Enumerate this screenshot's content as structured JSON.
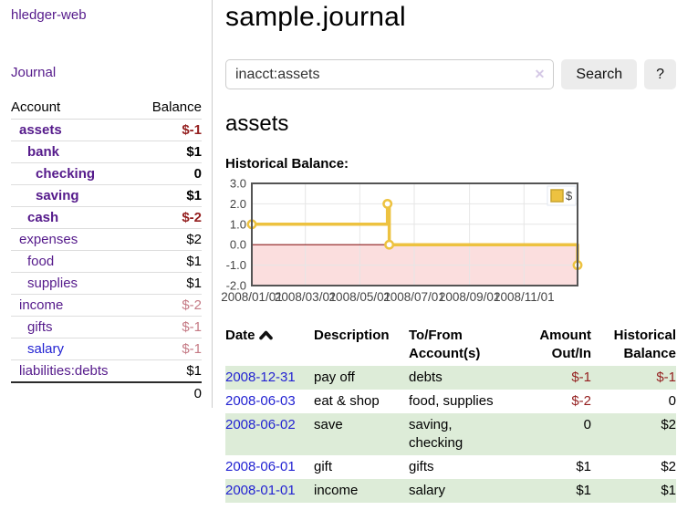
{
  "colors": {
    "link_purple": "#551a8b",
    "link_blue": "#2323d2",
    "negative_strong": "#941f1f",
    "negative_soft": "#c57a85",
    "row_highlight_green": "#ddecd8",
    "chart_line_gold": "#EDC240",
    "negative_region_pink": "#fbdede",
    "zero_line_red": "#8b1a1a"
  },
  "sidebar": {
    "app_title": "hledger-web",
    "nav_journal": "Journal",
    "accounts": {
      "col_account": "Account",
      "col_balance": "Balance",
      "rows": [
        {
          "name": "assets",
          "depth": 1,
          "bold": true,
          "balance": "$-1",
          "balance_style": "neg-strong"
        },
        {
          "name": "bank",
          "depth": 2,
          "bold": true,
          "balance": "$1",
          "balance_style": ""
        },
        {
          "name": "checking",
          "depth": 3,
          "bold": true,
          "balance": "0",
          "balance_style": ""
        },
        {
          "name": "saving",
          "depth": 3,
          "bold": true,
          "balance": "$1",
          "balance_style": ""
        },
        {
          "name": "cash",
          "depth": 2,
          "bold": true,
          "balance": "$-2",
          "balance_style": "neg-strong"
        },
        {
          "name": "expenses",
          "depth": 1,
          "bold": false,
          "balance": "$2",
          "balance_style": ""
        },
        {
          "name": "food",
          "depth": 2,
          "bold": false,
          "balance": "$1",
          "balance_style": ""
        },
        {
          "name": "supplies",
          "depth": 2,
          "bold": false,
          "balance": "$1",
          "balance_style": ""
        },
        {
          "name": "income",
          "depth": 1,
          "bold": false,
          "balance": "$-2",
          "balance_style": "neg-soft"
        },
        {
          "name": "gifts",
          "depth": 2,
          "bold": false,
          "balance": "$-1",
          "balance_style": "neg-soft"
        },
        {
          "name": "salary",
          "depth": 2,
          "bold": false,
          "balance": "$-1",
          "balance_style": "neg-soft",
          "link_style": "unvisited"
        },
        {
          "name": "liabilities:debts",
          "depth": 1,
          "bold": false,
          "balance": "$1",
          "balance_style": ""
        }
      ],
      "total": "0"
    }
  },
  "header": {
    "title": "sample.journal",
    "search": {
      "value": "inacct:assets",
      "clear_icon": "✕",
      "search_label": "Search",
      "help_label": "?"
    }
  },
  "account_page": {
    "heading": "assets",
    "chart_title": "Historical Balance:"
  },
  "chart_data": {
    "type": "line",
    "style": "step",
    "title": "Historical Balance:",
    "legend": [
      {
        "label": "$",
        "color": "#EDC240"
      }
    ],
    "legend_position": "top-right",
    "x_range": [
      "2008-01-01",
      "2008-12-31"
    ],
    "ylim": [
      -2,
      3
    ],
    "yticks": [
      3,
      2,
      1,
      0,
      -1,
      -2
    ],
    "xticks": [
      "2008/01/01",
      "2008/03/01",
      "2008/05/01",
      "2008/07/01",
      "2008/09/01",
      "2008/11/01"
    ],
    "grid": true,
    "series": [
      {
        "name": "$",
        "color": "#EDC240",
        "points": [
          [
            "2008-01-01",
            1
          ],
          [
            "2008-06-01",
            2
          ],
          [
            "2008-06-03",
            0
          ],
          [
            "2008-12-31",
            -1
          ]
        ]
      }
    ],
    "negative_region_fill": "#fbdede",
    "zero_line_color": "#8b1a1a"
  },
  "register": {
    "headers": [
      {
        "lines": [
          "Date"
        ],
        "align": "left",
        "sort": "asc"
      },
      {
        "lines": [
          "Description"
        ],
        "align": "left"
      },
      {
        "lines": [
          "To/From",
          "Account(s)"
        ],
        "align": "left"
      },
      {
        "lines": [
          "Amount",
          "Out/In"
        ],
        "align": "right"
      },
      {
        "lines": [
          "Historical",
          "Balance"
        ],
        "align": "right"
      }
    ],
    "rows": [
      {
        "date": "2008-12-31",
        "description": "pay off",
        "accounts": "debts",
        "amount": "$-1",
        "amount_neg": true,
        "balance": "$-1",
        "balance_neg": true
      },
      {
        "date": "2008-06-03",
        "description": "eat & shop",
        "accounts": "food, supplies",
        "amount": "$-2",
        "amount_neg": true,
        "balance": "0",
        "balance_neg": false
      },
      {
        "date": "2008-06-02",
        "description": "save",
        "accounts": "saving, checking",
        "amount": "0",
        "amount_neg": false,
        "balance": "$2",
        "balance_neg": false
      },
      {
        "date": "2008-06-01",
        "description": "gift",
        "accounts": "gifts",
        "amount": "$1",
        "amount_neg": false,
        "balance": "$2",
        "balance_neg": false
      },
      {
        "date": "2008-01-01",
        "description": "income",
        "accounts": "salary",
        "amount": "$1",
        "amount_neg": false,
        "balance": "$1",
        "balance_neg": false
      }
    ]
  }
}
